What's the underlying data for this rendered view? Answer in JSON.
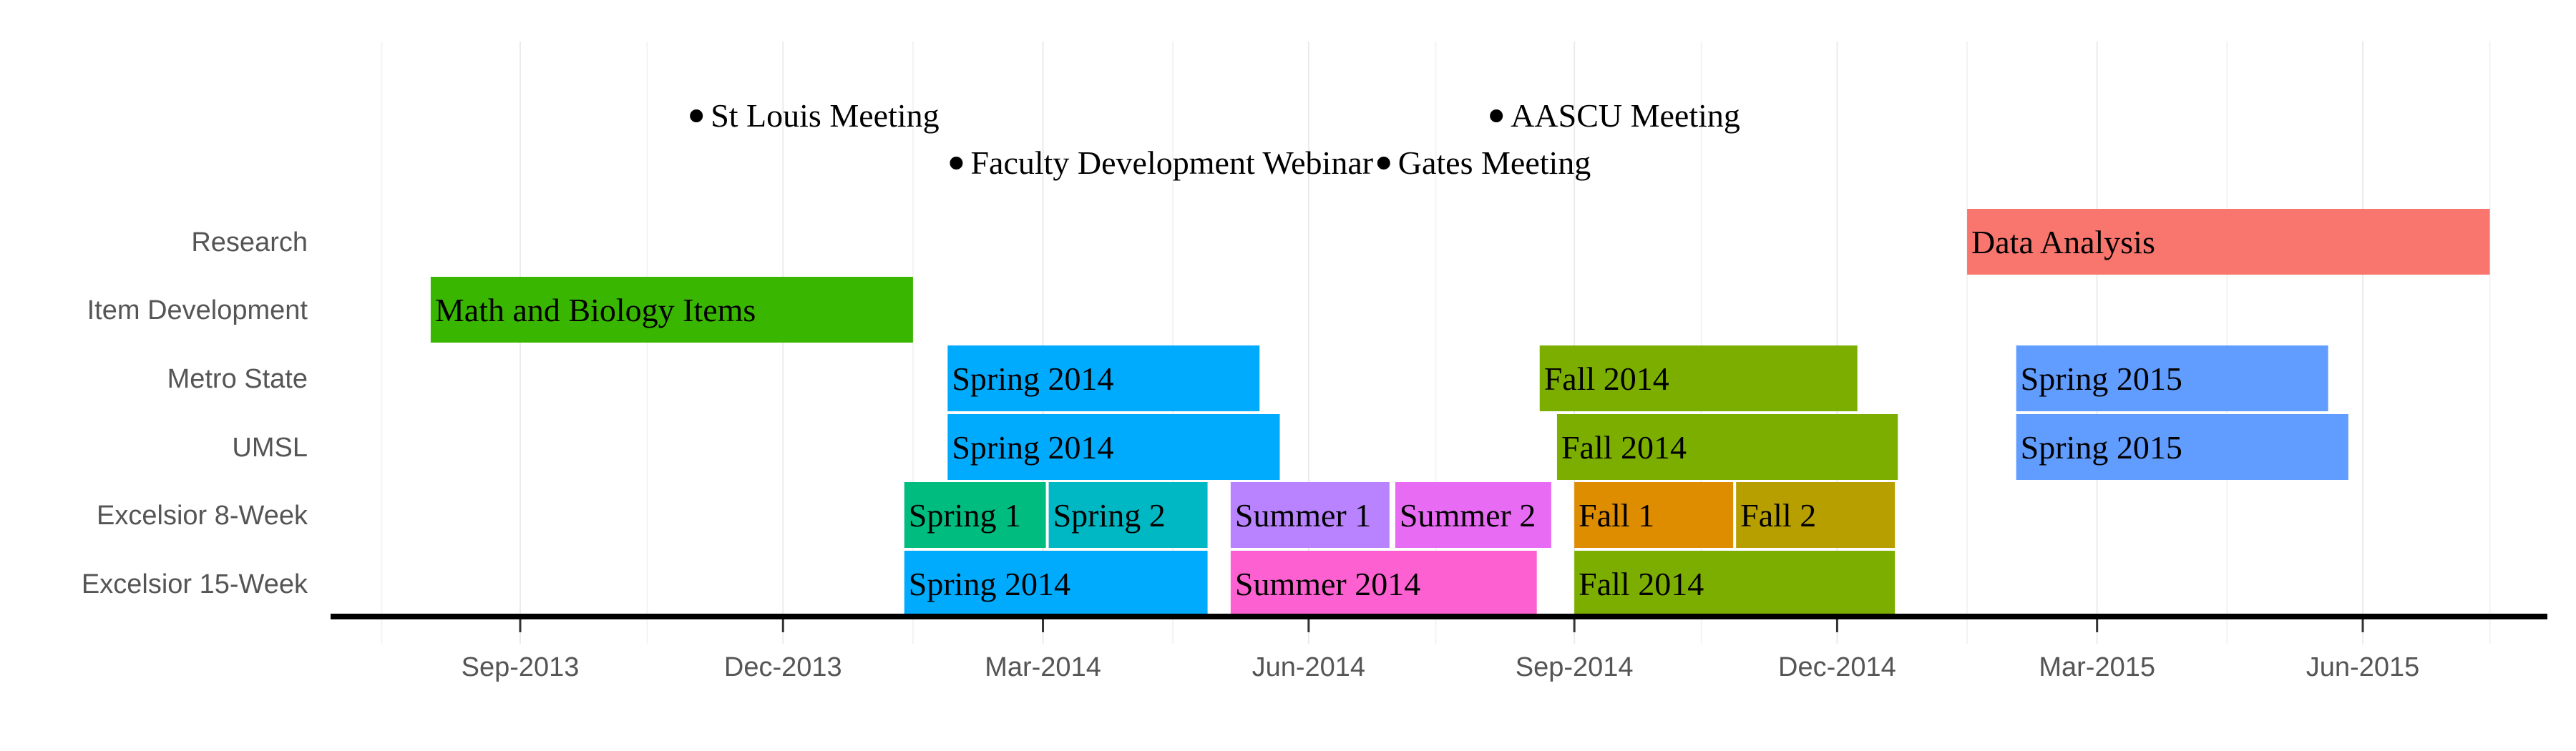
{
  "chart_data": {
    "type": "gantt",
    "title": "",
    "xlabel": "",
    "ylabel": "",
    "x_axis": {
      "type": "date",
      "range": [
        "2013-06-15",
        "2015-09-01"
      ],
      "major_ticks": [
        {
          "date": "2013-09-01",
          "label": "Sep-2013"
        },
        {
          "date": "2013-12-01",
          "label": "Dec-2013"
        },
        {
          "date": "2014-03-01",
          "label": "Mar-2014"
        },
        {
          "date": "2014-06-01",
          "label": "Jun-2014"
        },
        {
          "date": "2014-09-01",
          "label": "Sep-2014"
        },
        {
          "date": "2014-12-01",
          "label": "Dec-2014"
        },
        {
          "date": "2015-03-01",
          "label": "Mar-2015"
        },
        {
          "date": "2015-06-01",
          "label": "Jun-2015"
        }
      ],
      "minor_gridlines": [
        "2013-07-15",
        "2013-10-15",
        "2014-01-15",
        "2014-04-15",
        "2014-07-15",
        "2014-10-15",
        "2015-01-15",
        "2015-04-15",
        "2015-07-15"
      ]
    },
    "grid": {
      "vertical_minor": true,
      "horizontal": false
    },
    "rows": [
      "Research",
      "Item Development",
      "Metro State",
      "UMSL",
      "Excelsior 8-Week",
      "Excelsior 15-Week"
    ],
    "tasks": [
      {
        "row": "Research",
        "label": "Data Analysis",
        "start": "2015-01-15",
        "end": "2015-07-15",
        "color": "#F8766D"
      },
      {
        "row": "Item Development",
        "label": "Math and Biology Items",
        "start": "2013-08-01",
        "end": "2014-01-15",
        "color": "#39B600"
      },
      {
        "row": "Metro State",
        "label": "Spring 2014",
        "start": "2014-01-27",
        "end": "2014-05-15",
        "color": "#00ABFD"
      },
      {
        "row": "Metro State",
        "label": "Fall 2014",
        "start": "2014-08-20",
        "end": "2014-12-08",
        "color": "#7CAE00"
      },
      {
        "row": "Metro State",
        "label": "Spring 2015",
        "start": "2015-02-01",
        "end": "2015-05-20",
        "color": "#619CFF"
      },
      {
        "row": "UMSL",
        "label": "Spring 2014",
        "start": "2014-01-27",
        "end": "2014-05-22",
        "color": "#00ABFD"
      },
      {
        "row": "UMSL",
        "label": "Fall 2014",
        "start": "2014-08-26",
        "end": "2014-12-22",
        "color": "#7CAE00"
      },
      {
        "row": "UMSL",
        "label": "Spring 2015",
        "start": "2015-02-01",
        "end": "2015-05-27",
        "color": "#619CFF"
      },
      {
        "row": "Excelsior 8-Week",
        "label": "Spring 1",
        "start": "2014-01-12",
        "end": "2014-03-02",
        "color": "#00BC7F"
      },
      {
        "row": "Excelsior 8-Week",
        "label": "Spring 2",
        "start": "2014-03-03",
        "end": "2014-04-27",
        "color": "#00B8C4"
      },
      {
        "row": "Excelsior 8-Week",
        "label": "Summer 1",
        "start": "2014-05-05",
        "end": "2014-06-29",
        "color": "#B983FF"
      },
      {
        "row": "Excelsior 8-Week",
        "label": "Summer 2",
        "start": "2014-07-01",
        "end": "2014-08-24",
        "color": "#E76BF3"
      },
      {
        "row": "Excelsior 8-Week",
        "label": "Fall 1",
        "start": "2014-09-01",
        "end": "2014-10-26",
        "color": "#DE8C00"
      },
      {
        "row": "Excelsior 8-Week",
        "label": "Fall 2",
        "start": "2014-10-27",
        "end": "2014-12-21",
        "color": "#B79F00"
      },
      {
        "row": "Excelsior 15-Week",
        "label": "Spring 2014",
        "start": "2014-01-12",
        "end": "2014-04-27",
        "color": "#00ABFD"
      },
      {
        "row": "Excelsior 15-Week",
        "label": "Summer 2014",
        "start": "2014-05-05",
        "end": "2014-08-19",
        "color": "#FD61D1"
      },
      {
        "row": "Excelsior 15-Week",
        "label": "Fall 2014",
        "start": "2014-09-01",
        "end": "2014-12-21",
        "color": "#7CAE00"
      }
    ],
    "events": [
      {
        "label": "St Louis Meeting",
        "date": "2013-11-01",
        "level": 1
      },
      {
        "label": "Faculty Development Webinar",
        "date": "2014-01-30",
        "level": 2
      },
      {
        "label": "Gates Meeting",
        "date": "2014-06-27",
        "level": 2
      },
      {
        "label": "AASCU Meeting",
        "date": "2014-08-05",
        "level": 1
      }
    ],
    "baseline": true
  }
}
